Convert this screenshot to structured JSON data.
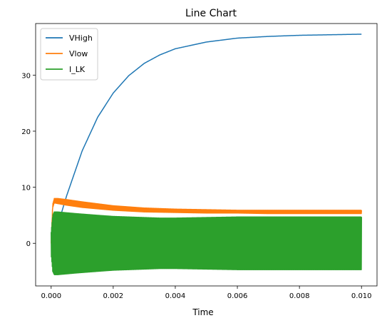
{
  "chart_data": {
    "type": "line",
    "title": "Line Chart",
    "xlabel": "Time",
    "ylabel": "",
    "xlim": [
      -0.0005,
      0.0105
    ],
    "ylim": [
      -7.6,
      39.2
    ],
    "x_ticks": [
      0.0,
      0.002,
      0.004,
      0.006,
      0.008,
      0.01
    ],
    "x_tick_labels": [
      "0.000",
      "0.002",
      "0.004",
      "0.006",
      "0.008",
      "0.010"
    ],
    "y_ticks": [
      0,
      10,
      20,
      30
    ],
    "y_tick_labels": [
      "0",
      "10",
      "20",
      "30"
    ],
    "grid": false,
    "legend_position": "top-left",
    "series": [
      {
        "name": "VHigh",
        "color": "#1f77b4",
        "x": [
          0.0,
          0.0002,
          0.0005,
          0.001,
          0.0015,
          0.002,
          0.0025,
          0.003,
          0.0035,
          0.004,
          0.005,
          0.006,
          0.007,
          0.008,
          0.009,
          0.01
        ],
        "y": [
          0.0,
          3.0,
          8.5,
          16.5,
          22.5,
          26.8,
          29.9,
          32.1,
          33.6,
          34.7,
          35.9,
          36.6,
          36.9,
          37.1,
          37.2,
          37.3
        ]
      },
      {
        "name": "Vlow",
        "color": "#ff7f0e",
        "band": true,
        "x": [
          0.0,
          5e-05,
          0.0001,
          0.0002,
          0.0005,
          0.001,
          0.002,
          0.003,
          0.004,
          0.005,
          0.006,
          0.007,
          0.008,
          0.009,
          0.01
        ],
        "upper": [
          0.0,
          7.0,
          8.0,
          8.0,
          7.8,
          7.4,
          6.7,
          6.3,
          6.1,
          6.0,
          5.9,
          5.9,
          5.9,
          5.9,
          5.9
        ],
        "lower": [
          0.0,
          6.3,
          7.2,
          7.1,
          6.8,
          6.4,
          5.9,
          5.6,
          5.5,
          5.4,
          5.4,
          5.3,
          5.3,
          5.3,
          5.3
        ]
      },
      {
        "name": "I_LK",
        "color": "#2ca02c",
        "band": true,
        "x": [
          0.0,
          5e-05,
          0.0001,
          0.0002,
          0.0004,
          0.0008,
          0.0015,
          0.002,
          0.003,
          0.0035,
          0.004,
          0.005,
          0.006,
          0.007,
          0.008,
          0.009,
          0.01
        ],
        "upper": [
          2.0,
          5.0,
          5.6,
          5.6,
          5.5,
          5.3,
          5.0,
          4.8,
          4.6,
          4.5,
          4.5,
          4.6,
          4.7,
          4.7,
          4.7,
          4.7,
          4.7
        ],
        "lower": [
          -2.0,
          -5.0,
          -5.6,
          -5.6,
          -5.5,
          -5.3,
          -5.0,
          -4.8,
          -4.6,
          -4.5,
          -4.5,
          -4.6,
          -4.7,
          -4.7,
          -4.7,
          -4.7,
          -4.7
        ]
      }
    ]
  }
}
